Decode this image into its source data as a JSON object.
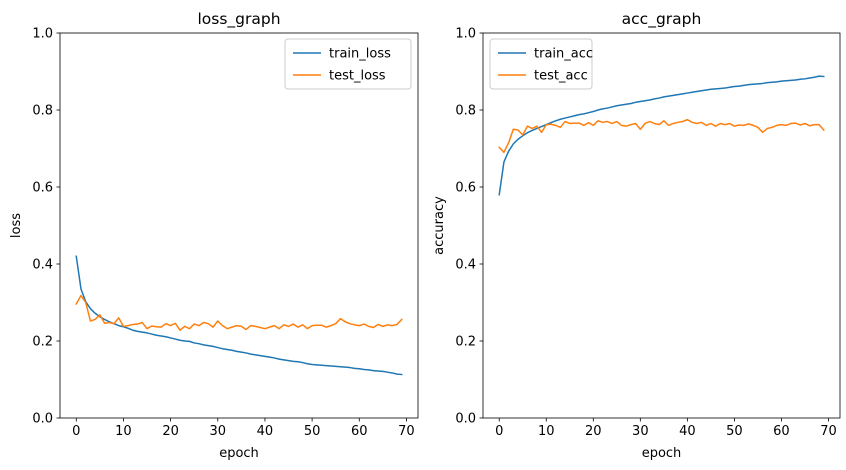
{
  "chart_data": [
    {
      "type": "line",
      "title": "loss_graph",
      "xlabel": "epoch",
      "ylabel": "loss",
      "xlim": [
        -3.45,
        72.45
      ],
      "ylim": [
        0,
        1.0
      ],
      "xticks": [
        0,
        10,
        20,
        30,
        40,
        50,
        60,
        70
      ],
      "yticks": [
        0.0,
        0.2,
        0.4,
        0.6,
        0.8,
        1.0
      ],
      "ytick_labels": [
        "0.0",
        "0.2",
        "0.4",
        "0.6",
        "0.8",
        "1.0"
      ],
      "grid": false,
      "legend": "upper right",
      "series": [
        {
          "name": "train_loss",
          "color": "#1f77b4",
          "values": [
            0.42,
            0.335,
            0.302,
            0.284,
            0.272,
            0.263,
            0.256,
            0.25,
            0.245,
            0.24,
            0.237,
            0.233,
            0.228,
            0.225,
            0.223,
            0.221,
            0.218,
            0.215,
            0.213,
            0.211,
            0.208,
            0.205,
            0.202,
            0.2,
            0.199,
            0.195,
            0.193,
            0.19,
            0.188,
            0.186,
            0.183,
            0.18,
            0.178,
            0.176,
            0.173,
            0.171,
            0.169,
            0.166,
            0.164,
            0.162,
            0.16,
            0.158,
            0.156,
            0.153,
            0.151,
            0.149,
            0.147,
            0.146,
            0.144,
            0.141,
            0.139,
            0.138,
            0.137,
            0.136,
            0.135,
            0.134,
            0.133,
            0.132,
            0.131,
            0.129,
            0.128,
            0.126,
            0.125,
            0.123,
            0.122,
            0.121,
            0.119,
            0.117,
            0.114,
            0.113
          ]
        },
        {
          "name": "test_loss",
          "color": "#ff7f0e",
          "values": [
            0.296,
            0.318,
            0.3,
            0.252,
            0.256,
            0.268,
            0.246,
            0.248,
            0.245,
            0.26,
            0.238,
            0.24,
            0.243,
            0.244,
            0.248,
            0.232,
            0.239,
            0.237,
            0.236,
            0.245,
            0.24,
            0.246,
            0.228,
            0.238,
            0.232,
            0.244,
            0.24,
            0.248,
            0.245,
            0.236,
            0.252,
            0.24,
            0.232,
            0.236,
            0.24,
            0.238,
            0.23,
            0.24,
            0.238,
            0.235,
            0.232,
            0.236,
            0.24,
            0.232,
            0.242,
            0.238,
            0.244,
            0.236,
            0.242,
            0.232,
            0.24,
            0.241,
            0.241,
            0.236,
            0.24,
            0.245,
            0.258,
            0.25,
            0.245,
            0.242,
            0.24,
            0.244,
            0.238,
            0.235,
            0.243,
            0.238,
            0.242,
            0.24,
            0.243,
            0.256
          ]
        }
      ]
    },
    {
      "type": "line",
      "title": "acc_graph",
      "xlabel": "epoch",
      "ylabel": "accuracy",
      "xlim": [
        -3.45,
        72.45
      ],
      "ylim": [
        0,
        1.0
      ],
      "xticks": [
        0,
        10,
        20,
        30,
        40,
        50,
        60,
        70
      ],
      "yticks": [
        0.0,
        0.2,
        0.4,
        0.6,
        0.8,
        1.0
      ],
      "ytick_labels": [
        "0.0",
        "0.2",
        "0.4",
        "0.6",
        "0.8",
        "1.0"
      ],
      "grid": false,
      "legend": "upper left",
      "series": [
        {
          "name": "train_acc",
          "color": "#1f77b4",
          "values": [
            0.58,
            0.665,
            0.693,
            0.712,
            0.724,
            0.733,
            0.741,
            0.747,
            0.752,
            0.757,
            0.762,
            0.767,
            0.772,
            0.776,
            0.779,
            0.782,
            0.785,
            0.788,
            0.79,
            0.793,
            0.796,
            0.8,
            0.803,
            0.805,
            0.808,
            0.811,
            0.813,
            0.815,
            0.817,
            0.82,
            0.822,
            0.824,
            0.826,
            0.829,
            0.831,
            0.834,
            0.836,
            0.838,
            0.84,
            0.842,
            0.844,
            0.846,
            0.848,
            0.85,
            0.852,
            0.854,
            0.855,
            0.856,
            0.857,
            0.859,
            0.861,
            0.862,
            0.864,
            0.866,
            0.867,
            0.868,
            0.869,
            0.871,
            0.872,
            0.873,
            0.875,
            0.876,
            0.877,
            0.878,
            0.88,
            0.881,
            0.883,
            0.885,
            0.888,
            0.887
          ]
        },
        {
          "name": "test_acc",
          "color": "#ff7f0e",
          "values": [
            0.703,
            0.69,
            0.715,
            0.75,
            0.748,
            0.735,
            0.758,
            0.752,
            0.758,
            0.742,
            0.762,
            0.763,
            0.76,
            0.755,
            0.77,
            0.765,
            0.766,
            0.766,
            0.76,
            0.767,
            0.76,
            0.772,
            0.768,
            0.77,
            0.765,
            0.77,
            0.76,
            0.758,
            0.762,
            0.765,
            0.75,
            0.765,
            0.77,
            0.765,
            0.762,
            0.772,
            0.76,
            0.765,
            0.768,
            0.77,
            0.775,
            0.768,
            0.765,
            0.768,
            0.76,
            0.765,
            0.758,
            0.765,
            0.762,
            0.765,
            0.758,
            0.761,
            0.76,
            0.764,
            0.76,
            0.755,
            0.742,
            0.752,
            0.755,
            0.76,
            0.762,
            0.76,
            0.765,
            0.766,
            0.761,
            0.765,
            0.759,
            0.762,
            0.762,
            0.748
          ]
        }
      ]
    }
  ]
}
